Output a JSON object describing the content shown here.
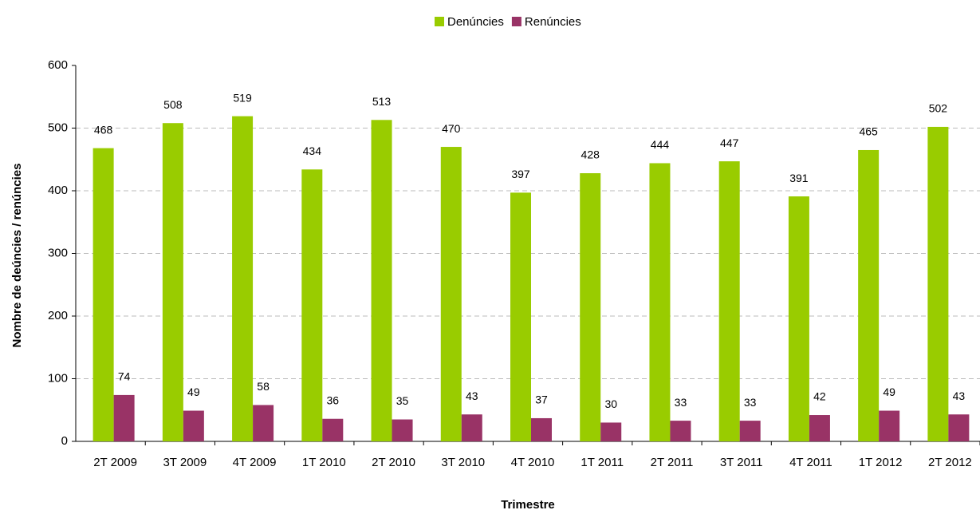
{
  "chart_data": {
    "type": "bar",
    "categories": [
      "2T 2009",
      "3T 2009",
      "4T 2009",
      "1T 2010",
      "2T 2010",
      "3T 2010",
      "4T 2010",
      "1T 2011",
      "2T 2011",
      "3T 2011",
      "4T 2011",
      "1T 2012",
      "2T 2012"
    ],
    "series": [
      {
        "name": "Denúncies",
        "color": "#99cc00",
        "values": [
          468,
          508,
          519,
          434,
          513,
          470,
          397,
          428,
          444,
          447,
          391,
          465,
          502
        ]
      },
      {
        "name": "Renúncies",
        "color": "#993366",
        "values": [
          74,
          49,
          58,
          36,
          35,
          43,
          37,
          30,
          33,
          33,
          42,
          49,
          43
        ]
      }
    ],
    "ylabel": "Nombre de deúncies / renúncies",
    "xlabel": "Trimestre",
    "ylim": [
      0,
      600
    ],
    "yticks": [
      0,
      100,
      200,
      300,
      400,
      500,
      600
    ],
    "grid": true,
    "legend": "top"
  }
}
